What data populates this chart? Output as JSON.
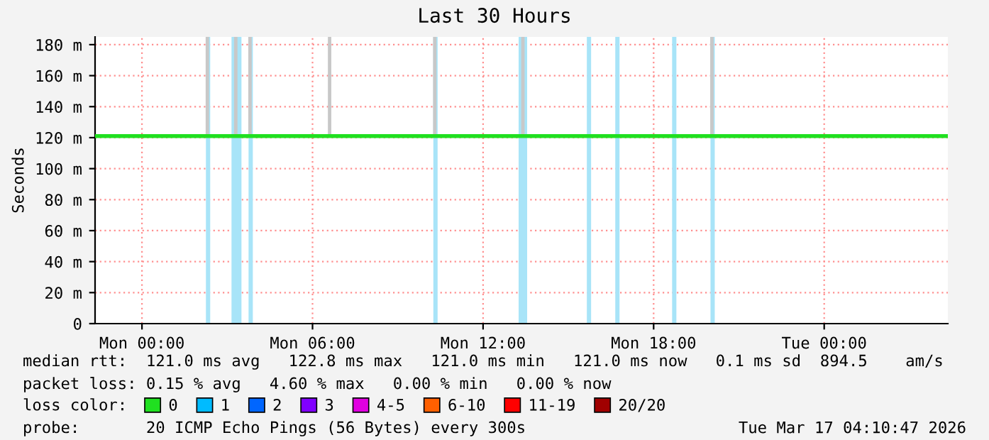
{
  "chart_data": {
    "type": "line",
    "title": "Last 30 Hours",
    "ylabel": "Seconds",
    "legend_title": "loss color:",
    "x": [
      "2026-03-15T22:21",
      "2026-03-17T04:21"
    ],
    "xlim": [
      "2026-03-15T22:21",
      "2026-03-17T04:21"
    ],
    "xticks": [
      {
        "value": "2026-03-16T00:00",
        "label": "Mon 00:00"
      },
      {
        "value": "2026-03-16T06:00",
        "label": "Mon 06:00"
      },
      {
        "value": "2026-03-16T12:00",
        "label": "Mon 12:00"
      },
      {
        "value": "2026-03-16T18:00",
        "label": "Mon 18:00"
      },
      {
        "value": "2026-03-17T00:00",
        "label": "Tue 00:00"
      }
    ],
    "ylim": [
      0,
      185
    ],
    "yticks": [
      0,
      {
        "value": 20,
        "label": "20 m"
      },
      {
        "value": 40,
        "label": "40 m"
      },
      {
        "value": 60,
        "label": "60 m"
      },
      {
        "value": 80,
        "label": "80 m"
      },
      {
        "value": 100,
        "label": "100 m"
      },
      {
        "value": 120,
        "label": "120 m"
      },
      {
        "value": 140,
        "label": "140 m"
      },
      {
        "value": 160,
        "label": "160 m"
      },
      {
        "value": 180,
        "label": "180 m"
      }
    ],
    "series": [
      {
        "name": "0",
        "color": "#20e020",
        "values": [
          121,
          121
        ]
      },
      {
        "name": "1",
        "color": "#00bbff",
        "values": [
          null,
          null
        ]
      },
      {
        "name": "2",
        "color": "#0066ff",
        "values": [
          null,
          null
        ]
      },
      {
        "name": "3",
        "color": "#8000ff",
        "values": [
          null,
          null
        ]
      },
      {
        "name": "4-5",
        "color": "#e000e0",
        "values": [
          null,
          null
        ]
      },
      {
        "name": "6-10",
        "color": "#ff6000",
        "values": [
          null,
          null
        ]
      },
      {
        "name": "11-19",
        "color": "#ff0000",
        "values": [
          null,
          null
        ]
      },
      {
        "name": "20/20",
        "color": "#a00000",
        "values": [
          null,
          null
        ]
      },
      {
        "type": "bar",
        "color": "#c8c8c8",
        "x": [
          "2026-03-16T02:18",
          "2026-03-16T03:18",
          "2026-03-16T03:48",
          "2026-03-16T06:36",
          "2026-03-16T10:18",
          "2026-03-16T13:24",
          "2026-03-16T20:03"
        ],
        "base": [
          121,
          121,
          121,
          121,
          121,
          121,
          121
        ],
        "values": [
          64,
          64,
          64,
          64,
          64,
          64,
          64
        ]
      }
    ],
    "bands": [
      {
        "axis": "x",
        "from": "2026-03-16T02:15",
        "to": "2026-03-16T02:24",
        "color": "#a8e4f8"
      },
      {
        "axis": "x",
        "from": "2026-03-16T03:09",
        "to": "2026-03-16T03:30",
        "color": "#a8e4f8"
      },
      {
        "axis": "x",
        "from": "2026-03-16T03:45",
        "to": "2026-03-16T03:54",
        "color": "#a8e4f8"
      },
      {
        "axis": "x",
        "from": "2026-03-16T10:15",
        "to": "2026-03-16T10:24",
        "color": "#a8e4f8"
      },
      {
        "axis": "x",
        "from": "2026-03-16T13:15",
        "to": "2026-03-16T13:33",
        "color": "#a8e4f8"
      },
      {
        "axis": "x",
        "from": "2026-03-16T15:39",
        "to": "2026-03-16T15:48",
        "color": "#a8e4f8"
      },
      {
        "axis": "x",
        "from": "2026-03-16T16:39",
        "to": "2026-03-16T16:48",
        "color": "#a8e4f8"
      },
      {
        "axis": "x",
        "from": "2026-03-16T18:39",
        "to": "2026-03-16T18:48",
        "color": "#a8e4f8"
      },
      {
        "axis": "x",
        "from": "2026-03-16T20:00",
        "to": "2026-03-16T20:09",
        "color": "#a8e4f8"
      }
    ],
    "grid": true,
    "legend": "bottom",
    "annotations": [
      "median rtt:  121.0 ms avg   122.8 ms max   121.0 ms min   121.0 ms now   0.1 ms sd  894.5    am/s",
      "packet loss: 0.15 % avg   4.60 % max   0.00 % min   0.00 % now",
      "probe:       20 ICMP Echo Pings (56 Bytes) every 300s",
      "Tue Mar 17 04:10:47 2026"
    ]
  }
}
